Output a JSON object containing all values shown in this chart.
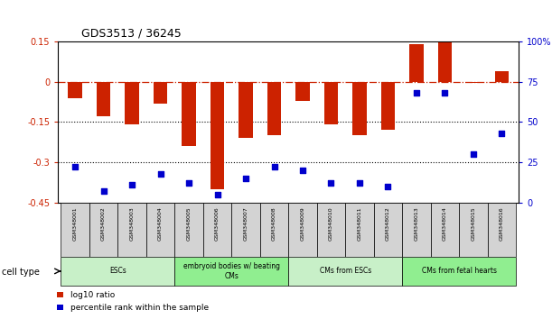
{
  "title": "GDS3513 / 36245",
  "samples": [
    "GSM348001",
    "GSM348002",
    "GSM348003",
    "GSM348004",
    "GSM348005",
    "GSM348006",
    "GSM348007",
    "GSM348008",
    "GSM348009",
    "GSM348010",
    "GSM348011",
    "GSM348012",
    "GSM348013",
    "GSM348014",
    "GSM348015",
    "GSM348016"
  ],
  "log10_ratio": [
    -0.06,
    -0.13,
    -0.16,
    -0.08,
    -0.24,
    -0.4,
    -0.21,
    -0.2,
    -0.07,
    -0.16,
    -0.2,
    -0.18,
    0.14,
    0.15,
    -0.005,
    0.04
  ],
  "percentile_rank": [
    22,
    7,
    11,
    18,
    12,
    5,
    15,
    22,
    20,
    12,
    12,
    10,
    68,
    68,
    30,
    43
  ],
  "bar_color": "#CC2200",
  "dot_color": "#0000CC",
  "zero_line_color": "#CC2200",
  "grid_line_color": "#000000",
  "ylim_left": [
    -0.45,
    0.15
  ],
  "ylim_right": [
    0,
    100
  ],
  "ylabel_left_ticks": [
    0.15,
    0,
    -0.15,
    -0.3,
    -0.45
  ],
  "ylabel_left_labels": [
    "0.15",
    "0",
    "-0.15",
    "-0.3",
    "-0.45"
  ],
  "ylabel_right_ticks": [
    100,
    75,
    50,
    25,
    0
  ],
  "ylabel_right_labels": [
    "100%",
    "75",
    "50",
    "25",
    "0"
  ],
  "legend_red": "log10 ratio",
  "legend_blue": "percentile rank within the sample",
  "bar_width": 0.5,
  "ct_labels": [
    "ESCs",
    "embryoid bodies w/ beating\nCMs",
    "CMs from ESCs",
    "CMs from fetal hearts"
  ],
  "ct_starts": [
    0,
    4,
    8,
    12
  ],
  "ct_ends": [
    4,
    8,
    12,
    16
  ],
  "ct_colors": [
    "#c8f0c8",
    "#90EE90",
    "#c8f0c8",
    "#90EE90"
  ]
}
